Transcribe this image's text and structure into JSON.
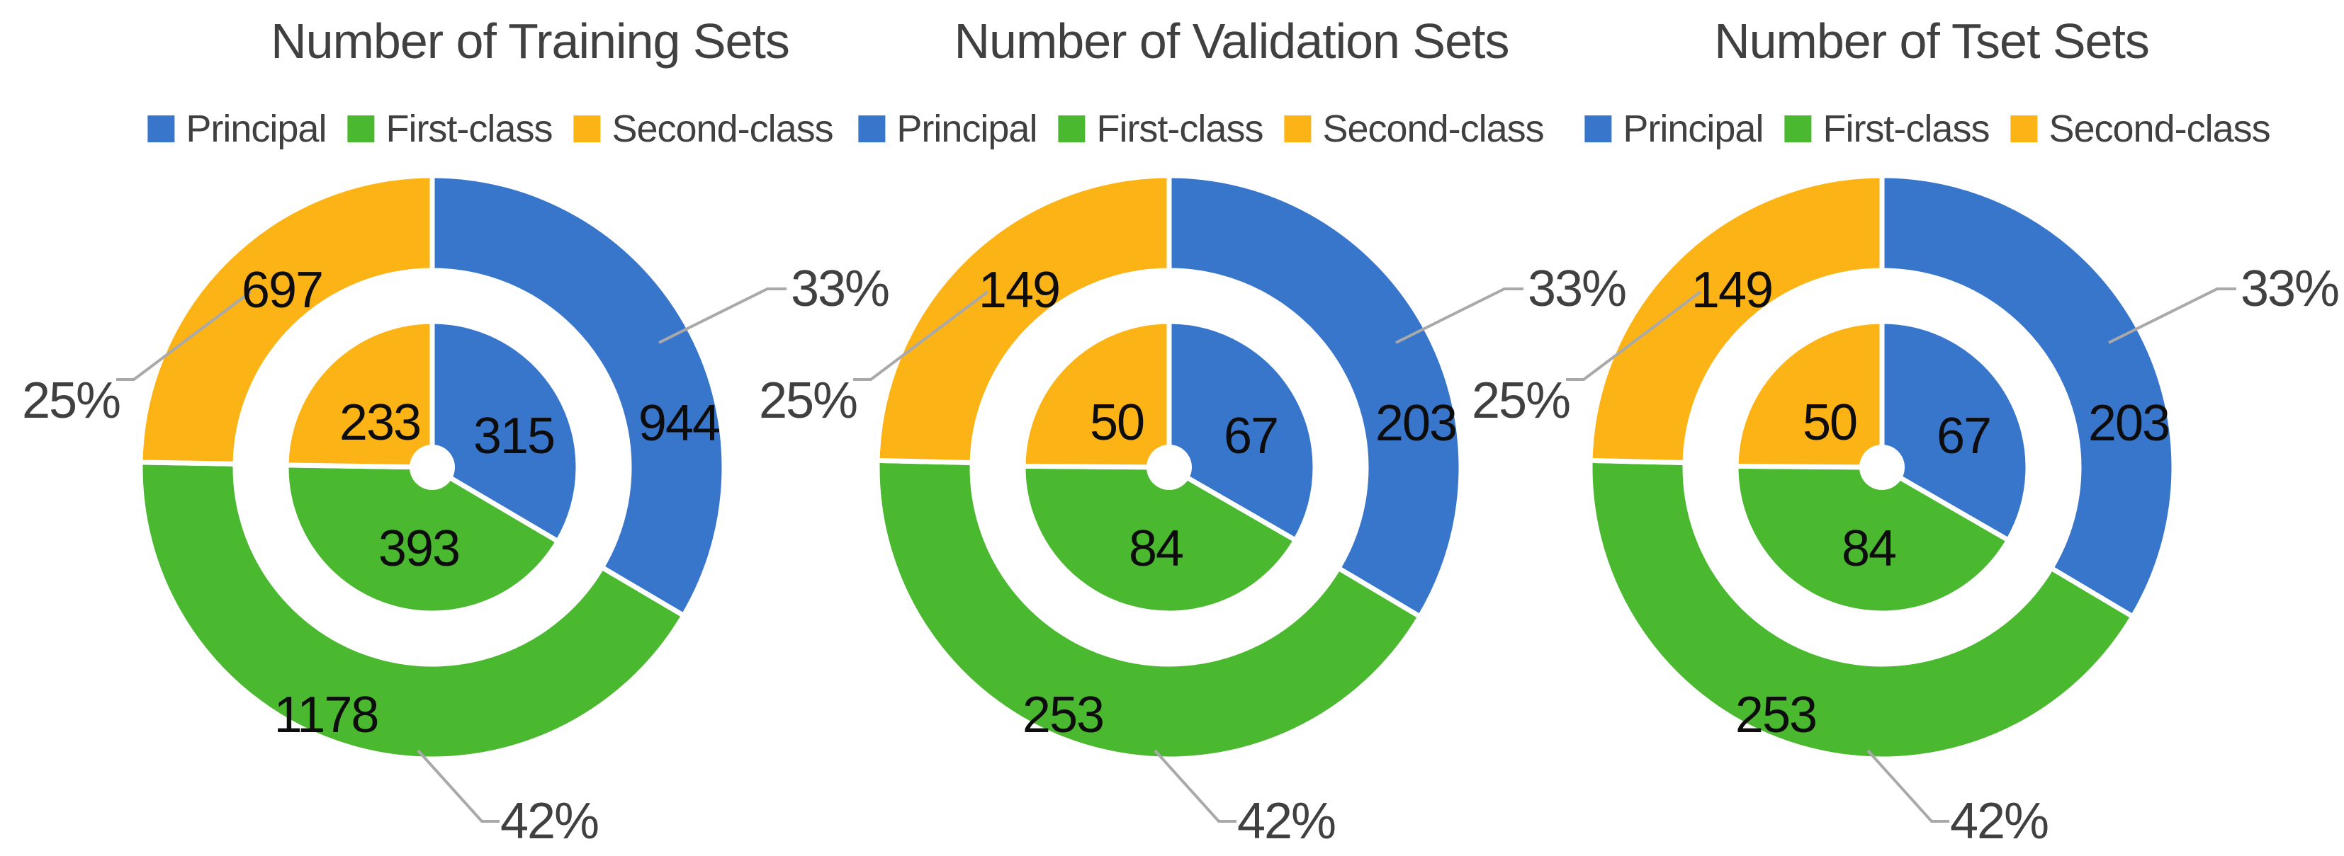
{
  "colors": {
    "principal": "#3876CC",
    "first_class": "#4BB92F",
    "second_class": "#FCB315",
    "leader_line": "#A9A9A9",
    "heading_text": "#404040",
    "value_text": "#0D0D0D",
    "background": "#FFFFFF"
  },
  "legend_labels": [
    "Principal",
    "First-class",
    "Second-class"
  ],
  "chart_data": [
    {
      "type": "nested-donut",
      "title": "Number of Training Sets",
      "categories": [
        "Principal",
        "First-class",
        "Second-class"
      ],
      "outer_values": [
        944,
        1178,
        697
      ],
      "inner_values": [
        315,
        393,
        233
      ],
      "percent_labels": [
        "33%",
        "42%",
        "25%"
      ],
      "legend_position": "top",
      "start_angle_deg": 0,
      "direction": "clockwise"
    },
    {
      "type": "nested-donut",
      "title": "Number of Validation Sets",
      "categories": [
        "Principal",
        "First-class",
        "Second-class"
      ],
      "outer_values": [
        203,
        253,
        149
      ],
      "inner_values": [
        67,
        84,
        50
      ],
      "percent_labels": [
        "33%",
        "42%",
        "25%"
      ],
      "legend_position": "top",
      "start_angle_deg": 0,
      "direction": "clockwise"
    },
    {
      "type": "nested-donut",
      "title": "Number of Tset Sets",
      "categories": [
        "Principal",
        "First-class",
        "Second-class"
      ],
      "outer_values": [
        203,
        253,
        149
      ],
      "inner_values": [
        67,
        84,
        50
      ],
      "percent_labels": [
        "33%",
        "42%",
        "25%"
      ],
      "legend_position": "top",
      "start_angle_deg": 0,
      "direction": "clockwise"
    }
  ]
}
